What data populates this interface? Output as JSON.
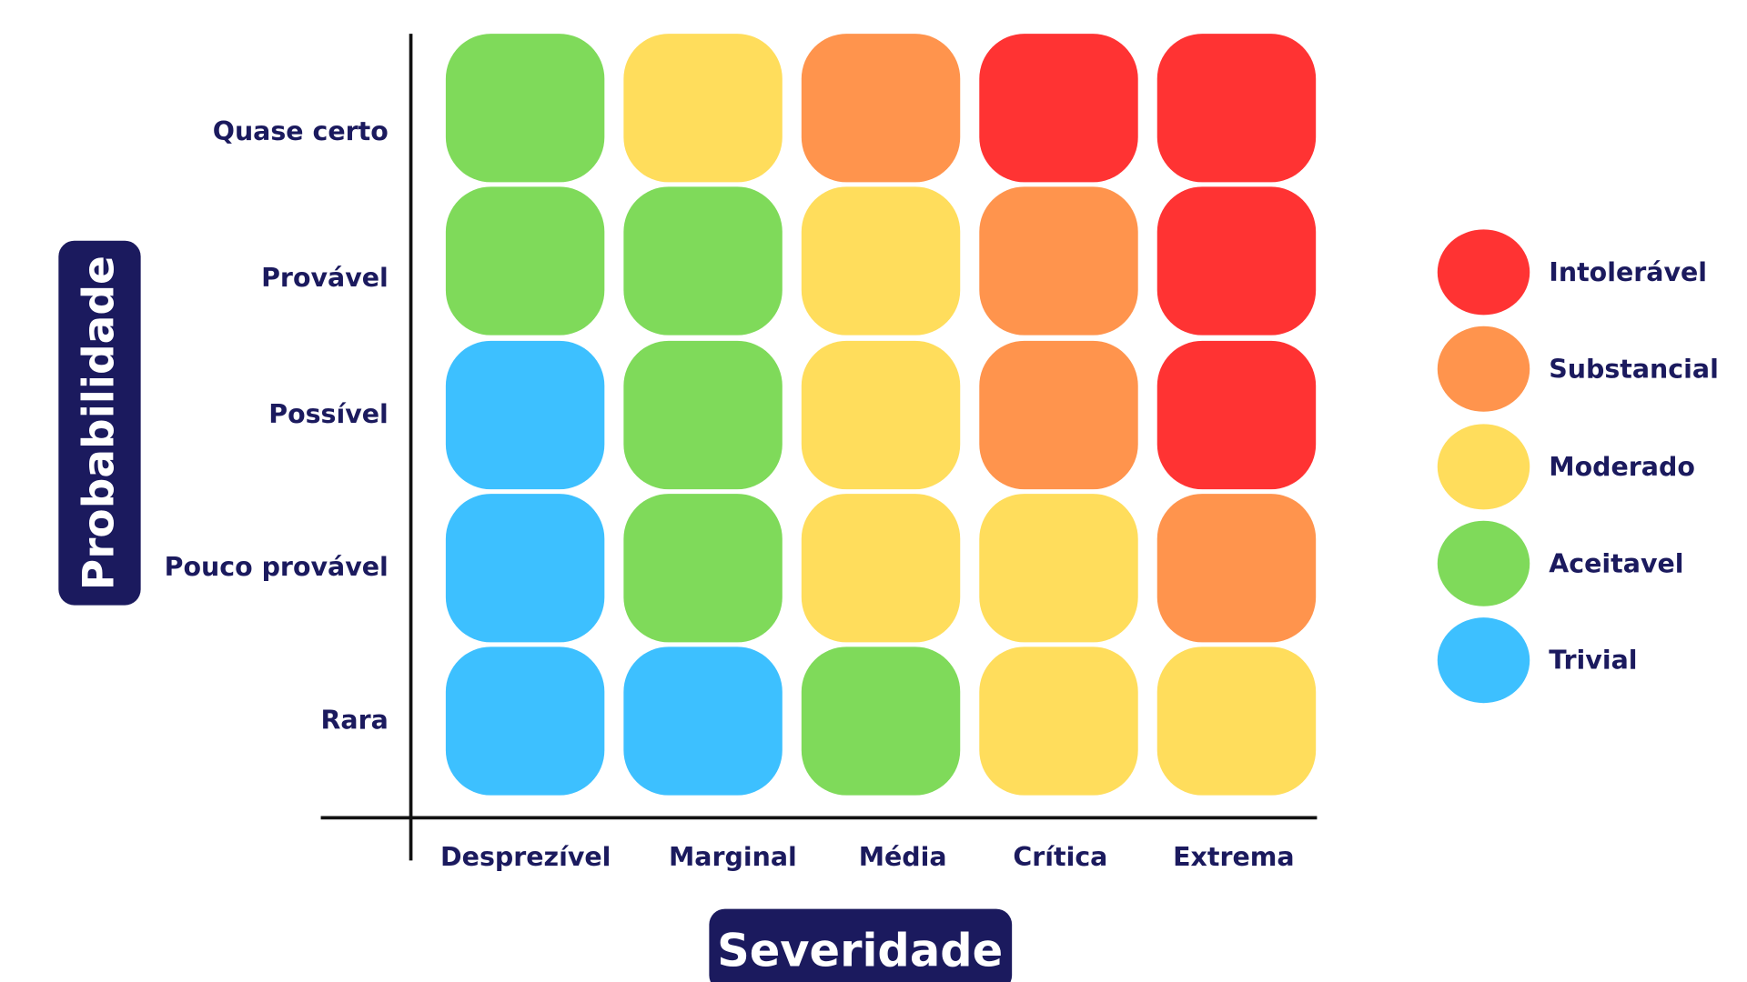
{
  "chart_data": {
    "type": "heatmap",
    "title": "",
    "xlabel": "Severidade",
    "ylabel": "Probabilidade",
    "x_categories": [
      "Desprezível",
      "Marginal",
      "Média",
      "Crítica",
      "Extrema"
    ],
    "y_categories": [
      "Quase certo",
      "Provável",
      "Possível",
      "Pouco provável",
      "Rara"
    ],
    "cells": [
      [
        "Aceitavel",
        "Moderado",
        "Substancial",
        "Intolerável",
        "Intolerável"
      ],
      [
        "Aceitavel",
        "Aceitavel",
        "Moderado",
        "Substancial",
        "Intolerável"
      ],
      [
        "Trivial",
        "Aceitavel",
        "Moderado",
        "Substancial",
        "Intolerável"
      ],
      [
        "Trivial",
        "Aceitavel",
        "Moderado",
        "Moderado",
        "Substancial"
      ],
      [
        "Trivial",
        "Trivial",
        "Aceitavel",
        "Moderado",
        "Moderado"
      ]
    ],
    "legend": [
      {
        "label": "Intolerável",
        "color": "#ff3333"
      },
      {
        "label": "Substancial",
        "color": "#ff944d"
      },
      {
        "label": "Moderado",
        "color": "#ffdd5c"
      },
      {
        "label": "Aceitavel",
        "color": "#7fda5a"
      },
      {
        "label": "Trivial",
        "color": "#3dc0ff"
      }
    ],
    "legend_position": "right",
    "grid": false,
    "label_color": "#1b1a5e",
    "badge_color": "#1b1a5e",
    "axis_color": "#111111"
  }
}
